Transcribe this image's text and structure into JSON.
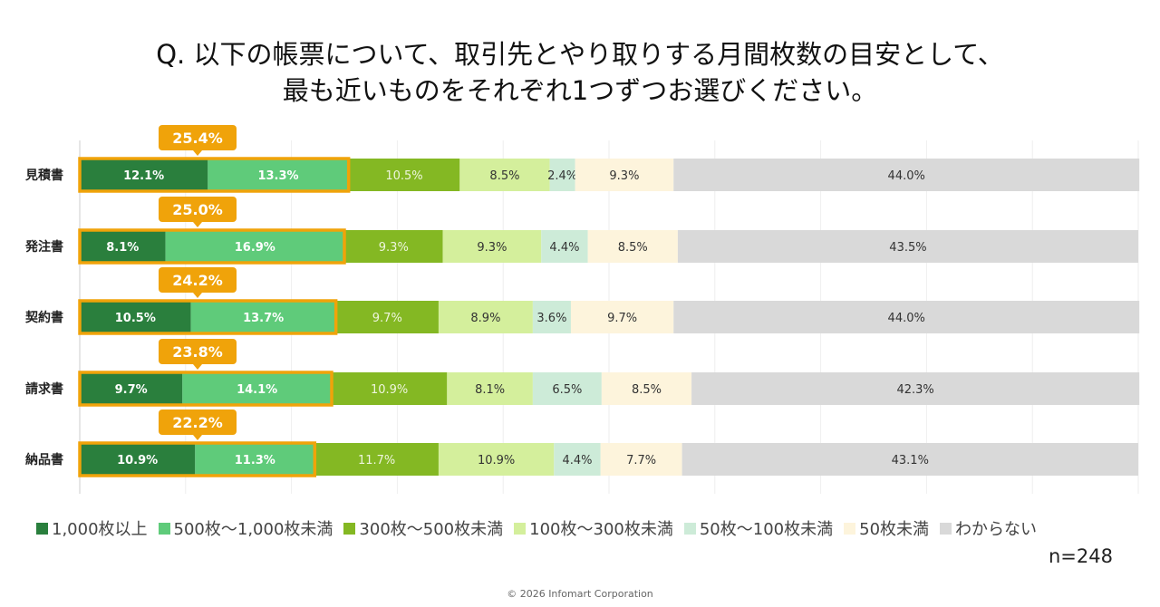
{
  "title": [
    "Q. 以下の帳票について、取引先とやり取りする月間枚数の目安として、",
    "最も近いものをそれぞれ1つずつお選びください。"
  ],
  "chart_data": {
    "type": "bar",
    "orientation": "horizontal",
    "stacked": true,
    "xlim": [
      0,
      100
    ],
    "grid": true,
    "legend_position": "bottom",
    "categories": [
      "見積書",
      "発注書",
      "契約書",
      "請求書",
      "納品書"
    ],
    "series": [
      {
        "name": "1,000枚以上",
        "color": "#2a7f3d",
        "values": [
          12.1,
          8.1,
          10.5,
          9.7,
          10.9
        ]
      },
      {
        "name": "500枚～1,000枚未満",
        "color": "#5fcb7a",
        "values": [
          13.3,
          16.9,
          13.7,
          14.1,
          11.3
        ]
      },
      {
        "name": "300枚～500枚未満",
        "color": "#84b823",
        "values": [
          10.5,
          9.3,
          9.7,
          10.9,
          11.7
        ]
      },
      {
        "name": "100枚～300枚未満",
        "color": "#d4ef9c",
        "values": [
          8.5,
          9.3,
          8.9,
          8.1,
          10.9
        ]
      },
      {
        "name": "50枚～100枚未満",
        "color": "#cdebd8",
        "values": [
          2.4,
          4.4,
          3.6,
          6.5,
          4.4
        ]
      },
      {
        "name": "50枚未満",
        "color": "#fdf4dc",
        "values": [
          9.3,
          8.5,
          9.7,
          8.5,
          7.7
        ]
      },
      {
        "name": "わからない",
        "color": "#d9d9d9",
        "values": [
          44.0,
          43.5,
          44.0,
          42.3,
          43.1
        ]
      }
    ],
    "highlight": {
      "color": "#f0a30a",
      "labels": [
        "25.4%",
        "25.0%",
        "24.2%",
        "23.8%",
        "22.2%"
      ]
    }
  },
  "sample_size": "n=248",
  "copyright": "© 2026 Infomart Corporation"
}
